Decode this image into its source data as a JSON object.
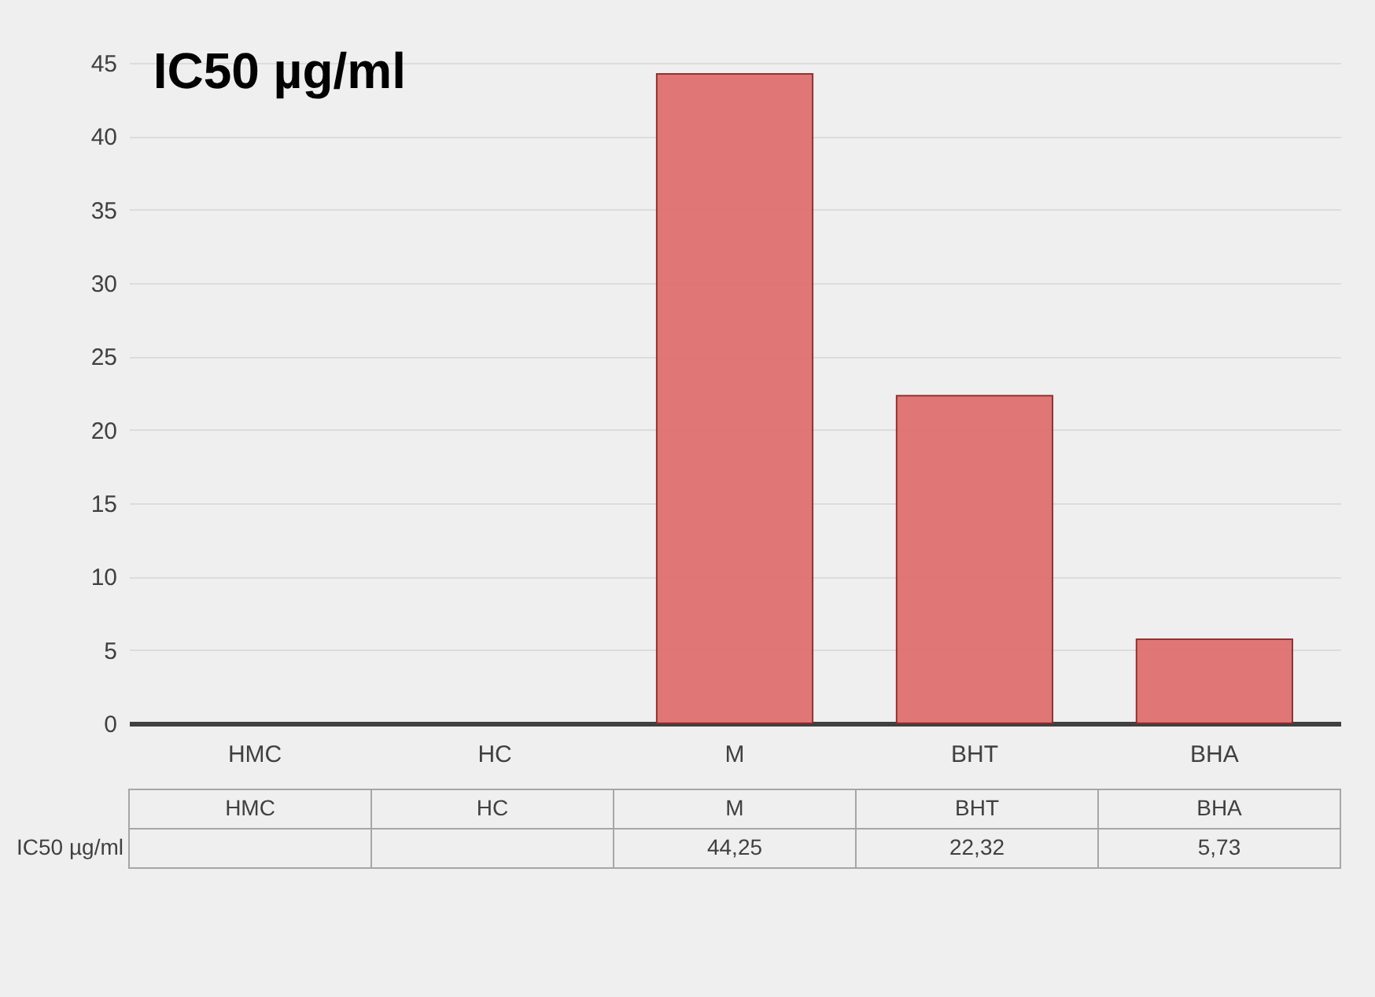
{
  "chart_data": {
    "type": "bar",
    "title": "IC50 µg/ml",
    "categories": [
      "HMC",
      "HC",
      "M",
      "BHT",
      "BHA"
    ],
    "series": [
      {
        "name": "IC50 µg/ml",
        "color": "#e07070",
        "values": [
          null,
          null,
          44.25,
          22.32,
          5.73
        ],
        "value_labels": [
          null,
          null,
          "44,25",
          "22,32",
          "5,73"
        ]
      }
    ],
    "ylim": [
      0,
      45
    ],
    "yticks": [
      0,
      5,
      10,
      15,
      20,
      25,
      30,
      35,
      40,
      45
    ],
    "grid": "y"
  }
}
